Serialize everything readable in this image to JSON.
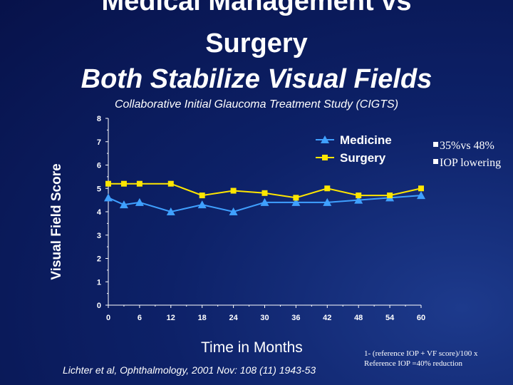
{
  "slide": {
    "title_line1": "Medical Management vs",
    "title_line2": "Surgery",
    "title_line3": "Both Stabilize Visual Fields",
    "subtitle": "Collaborative Initial Glaucoma Treatment Study (CIGTS)",
    "bullets": [
      "35%vs 48%",
      "IOP lowering"
    ],
    "footnote_line1": "1- (reference IOP + VF score)/100 x",
    "footnote_line2": "Reference IOP =40% reduction",
    "citation": "Lichter et al, Ophthalmology, 2001 Nov: 108 (11) 1943-53"
  },
  "colors": {
    "background": "#0d2168",
    "medicine": "#3fa0ff",
    "surgery": "#ffe600",
    "axis": "#ffffff"
  },
  "chart_data": {
    "type": "line",
    "title": "",
    "xlabel": "Time in Months",
    "ylabel": "Visual Field Score",
    "xlim": [
      0,
      60
    ],
    "ylim": [
      0,
      8
    ],
    "x_ticks": [
      "0",
      "6",
      "12",
      "18",
      "24",
      "30",
      "36",
      "42",
      "48",
      "54",
      "60"
    ],
    "y_ticks": [
      "0",
      "1",
      "2",
      "3",
      "4",
      "5",
      "6",
      "7",
      "8"
    ],
    "grid": false,
    "legend_position": "top-right",
    "series": [
      {
        "name": "Medicine",
        "marker": "triangle",
        "x": [
          0,
          3,
          6,
          12,
          18,
          24,
          30,
          36,
          42,
          48,
          54,
          60
        ],
        "values": [
          4.6,
          4.3,
          4.4,
          4.0,
          4.3,
          4.0,
          4.4,
          4.4,
          4.4,
          4.5,
          4.6,
          4.7
        ]
      },
      {
        "name": "Surgery",
        "marker": "square",
        "x": [
          0,
          3,
          6,
          12,
          18,
          24,
          30,
          36,
          42,
          48,
          54,
          60
        ],
        "values": [
          5.2,
          5.2,
          5.2,
          5.2,
          4.7,
          4.9,
          4.8,
          4.6,
          5.0,
          4.7,
          4.7,
          5.0
        ]
      }
    ]
  }
}
